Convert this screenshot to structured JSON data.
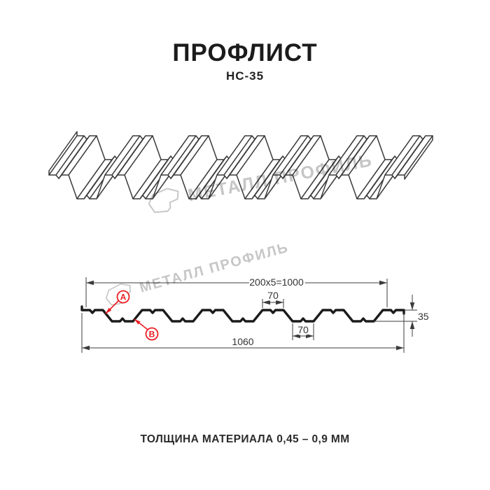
{
  "header": {
    "title": "ПРОФЛИСТ",
    "subtitle": "НС-35"
  },
  "watermark": {
    "brand": "МЕТАЛЛ ПРОФИЛЬ"
  },
  "dimensions": {
    "working_width": "200x5=1000",
    "rib_top_width": "70",
    "rib_bottom_width": "70",
    "overall_width": "1060",
    "height": "35"
  },
  "callouts": {
    "a": "A",
    "b": "B"
  },
  "footer": {
    "thickness": "ТОЛЩИНА МАТЕРИАЛА 0,45 – 0,9 ММ"
  },
  "colors": {
    "line": "#2b2b2b",
    "dim_line": "#3c3c3c",
    "accent_red": "#ec1c24",
    "watermark": "#c6c6c6"
  }
}
